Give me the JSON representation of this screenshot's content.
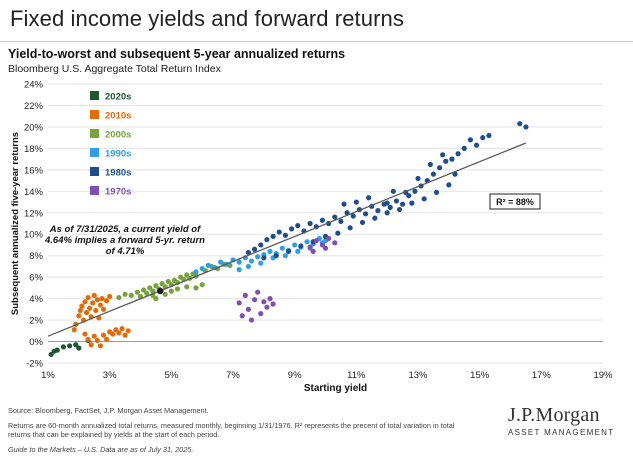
{
  "page": {
    "title": "Fixed income yields and forward returns",
    "chart_title": "Yield-to-worst and subsequent 5-year annualized returns",
    "chart_subtitle": "Bloomberg U.S. Aggregate Total Return Index"
  },
  "footer": {
    "source": "Source: Bloomberg, FactSet, J.P. Morgan Asset Management.",
    "notes": "Returns are 60-month annualized total returns, measured monthly, beginning 1/31/1976. R² represents the precent of total variation in total returns that can be explained by yields at the start of each period.",
    "guide": "Guide to the Markets – U.S. Data are as of July 31, 2025.",
    "logo_main": "J.P.Morgan",
    "logo_sub": "ASSET MANAGEMENT"
  },
  "chart_data": {
    "type": "scatter",
    "title": "Yield-to-worst and subsequent 5-year annualized returns",
    "subtitle": "Bloomberg U.S. Aggregate Total Return Index",
    "xlabel": "Starting yield",
    "ylabel": "Subsequent annualized five-year returns",
    "xlim": [
      1,
      19
    ],
    "ylim": [
      -2,
      24
    ],
    "x_ticks": [
      1,
      3,
      5,
      7,
      9,
      11,
      13,
      15,
      17,
      19
    ],
    "y_ticks": [
      -2,
      0,
      2,
      4,
      6,
      8,
      10,
      12,
      14,
      16,
      18,
      20,
      22,
      24
    ],
    "x_tick_format": "%",
    "y_tick_format": "%",
    "grid": "horizontal",
    "legend_position": "top-left",
    "r_squared_label": "R² = 88%",
    "annotation": {
      "lines": [
        "As of 7/31/2025, a current yield of",
        "4.64% implies a forward 5-yr. return",
        "of 4.71%"
      ],
      "x": 4.64,
      "y": 4.71
    },
    "trendline": {
      "x": [
        1,
        16.5
      ],
      "y": [
        0.5,
        18.5
      ]
    },
    "series": [
      {
        "name": "2020s",
        "color": "#1e5631",
        "points": [
          [
            1.1,
            -1.2
          ],
          [
            1.2,
            -0.9
          ],
          [
            1.3,
            -0.8
          ],
          [
            1.5,
            -0.5
          ],
          [
            1.7,
            -0.4
          ],
          [
            1.9,
            -0.3
          ],
          [
            2.0,
            -0.6
          ],
          [
            2.3,
            0.1
          ]
        ]
      },
      {
        "name": "2010s",
        "color": "#e36c0a",
        "points": [
          [
            1.85,
            1.1
          ],
          [
            1.9,
            1.6
          ],
          [
            2.0,
            2.4
          ],
          [
            2.05,
            2.9
          ],
          [
            2.1,
            3.3
          ],
          [
            2.15,
            2.0
          ],
          [
            2.2,
            3.7
          ],
          [
            2.25,
            2.7
          ],
          [
            2.3,
            4.1
          ],
          [
            2.35,
            3.1
          ],
          [
            2.4,
            2.3
          ],
          [
            2.45,
            3.6
          ],
          [
            2.5,
            4.3
          ],
          [
            2.55,
            2.9
          ],
          [
            2.6,
            3.9
          ],
          [
            2.65,
            2.2
          ],
          [
            2.7,
            3.4
          ],
          [
            2.75,
            4.0
          ],
          [
            2.8,
            3.0
          ],
          [
            2.9,
            3.8
          ],
          [
            3.0,
            4.2
          ],
          [
            2.2,
            0.7
          ],
          [
            2.3,
            0.2
          ],
          [
            2.4,
            -0.3
          ],
          [
            2.5,
            0.5
          ],
          [
            2.6,
            0.1
          ],
          [
            2.7,
            -0.4
          ],
          [
            2.8,
            0.6
          ],
          [
            2.9,
            0.2
          ],
          [
            3.0,
            0.9
          ],
          [
            3.1,
            0.7
          ],
          [
            3.2,
            1.1
          ],
          [
            3.3,
            0.8
          ],
          [
            3.4,
            1.2
          ],
          [
            3.5,
            0.6
          ],
          [
            3.6,
            1.0
          ]
        ]
      },
      {
        "name": "2000s",
        "color": "#77a33b",
        "points": [
          [
            3.3,
            4.1
          ],
          [
            3.5,
            4.4
          ],
          [
            3.7,
            4.3
          ],
          [
            3.9,
            4.6
          ],
          [
            4.0,
            4.2
          ],
          [
            4.1,
            4.8
          ],
          [
            4.2,
            4.5
          ],
          [
            4.3,
            5.0
          ],
          [
            4.4,
            4.7
          ],
          [
            4.5,
            5.2
          ],
          [
            4.6,
            4.9
          ],
          [
            4.7,
            5.4
          ],
          [
            4.8,
            5.1
          ],
          [
            4.9,
            5.6
          ],
          [
            5.0,
            5.3
          ],
          [
            5.1,
            5.7
          ],
          [
            5.2,
            5.5
          ],
          [
            5.3,
            6.0
          ],
          [
            5.4,
            5.8
          ],
          [
            5.5,
            6.2
          ],
          [
            5.6,
            5.9
          ],
          [
            5.7,
            6.3
          ],
          [
            5.8,
            6.1
          ],
          [
            4.4,
            4.3
          ],
          [
            4.5,
            4.0
          ],
          [
            4.8,
            4.4
          ],
          [
            5.0,
            4.7
          ],
          [
            5.2,
            4.9
          ],
          [
            5.5,
            5.1
          ],
          [
            5.8,
            5.0
          ],
          [
            6.0,
            5.3
          ],
          [
            6.1,
            6.6
          ],
          [
            6.3,
            7.0
          ],
          [
            6.5,
            6.8
          ],
          [
            6.7,
            7.2
          ],
          [
            6.9,
            7.1
          ]
        ]
      },
      {
        "name": "1990s",
        "color": "#2e9fe6",
        "points": [
          [
            5.8,
            6.5
          ],
          [
            6.0,
            6.8
          ],
          [
            6.2,
            7.1
          ],
          [
            6.4,
            6.9
          ],
          [
            6.6,
            7.4
          ],
          [
            6.8,
            7.2
          ],
          [
            7.0,
            7.6
          ],
          [
            7.2,
            7.4
          ],
          [
            7.4,
            7.8
          ],
          [
            7.6,
            7.5
          ],
          [
            7.8,
            7.9
          ],
          [
            8.0,
            8.1
          ],
          [
            8.2,
            8.4
          ],
          [
            8.4,
            8.2
          ],
          [
            8.6,
            8.7
          ],
          [
            8.8,
            8.5
          ],
          [
            9.0,
            9.0
          ],
          [
            9.2,
            8.8
          ],
          [
            9.4,
            9.3
          ],
          [
            9.6,
            9.1
          ],
          [
            9.8,
            9.6
          ],
          [
            10.0,
            9.4
          ],
          [
            7.2,
            6.7
          ],
          [
            7.5,
            7.0
          ],
          [
            7.9,
            7.3
          ],
          [
            8.3,
            7.8
          ],
          [
            8.7,
            8.0
          ],
          [
            9.1,
            8.4
          ],
          [
            9.5,
            8.7
          ],
          [
            9.9,
            9.2
          ]
        ]
      },
      {
        "name": "1980s",
        "color": "#1f4e8c",
        "points": [
          [
            7.5,
            8.3
          ],
          [
            7.7,
            8.6
          ],
          [
            7.9,
            9.0
          ],
          [
            8.1,
            9.5
          ],
          [
            8.3,
            9.8
          ],
          [
            8.5,
            10.2
          ],
          [
            8.7,
            9.9
          ],
          [
            8.9,
            10.5
          ],
          [
            9.1,
            10.8
          ],
          [
            9.3,
            10.3
          ],
          [
            9.5,
            11.0
          ],
          [
            9.7,
            10.7
          ],
          [
            9.9,
            11.3
          ],
          [
            10.1,
            11.0
          ],
          [
            10.3,
            11.6
          ],
          [
            10.5,
            11.2
          ],
          [
            10.7,
            12.0
          ],
          [
            10.9,
            11.7
          ],
          [
            11.1,
            12.3
          ],
          [
            11.3,
            11.9
          ],
          [
            11.5,
            12.6
          ],
          [
            11.7,
            12.2
          ],
          [
            11.9,
            12.8
          ],
          [
            12.1,
            12.5
          ],
          [
            12.3,
            13.1
          ],
          [
            12.5,
            12.8
          ],
          [
            12.7,
            13.6
          ],
          [
            12.9,
            14.0
          ],
          [
            13.1,
            14.5
          ],
          [
            13.3,
            15.0
          ],
          [
            13.5,
            15.6
          ],
          [
            13.7,
            16.2
          ],
          [
            13.9,
            16.8
          ],
          [
            14.1,
            17.0
          ],
          [
            14.3,
            17.5
          ],
          [
            14.5,
            18.0
          ],
          [
            14.7,
            18.8
          ],
          [
            14.9,
            18.3
          ],
          [
            15.1,
            19.0
          ],
          [
            15.3,
            19.2
          ],
          [
            16.3,
            20.3
          ],
          [
            16.5,
            20.0
          ],
          [
            8.0,
            7.8
          ],
          [
            8.4,
            8.0
          ],
          [
            8.8,
            8.4
          ],
          [
            9.2,
            8.9
          ],
          [
            9.6,
            9.3
          ],
          [
            10.0,
            9.8
          ],
          [
            10.4,
            10.1
          ],
          [
            10.8,
            10.6
          ],
          [
            11.2,
            11.1
          ],
          [
            11.6,
            11.5
          ],
          [
            12.0,
            12.0
          ],
          [
            12.4,
            12.3
          ],
          [
            12.8,
            12.9
          ],
          [
            13.2,
            13.3
          ],
          [
            13.6,
            13.9
          ],
          [
            14.0,
            14.6
          ],
          [
            12.2,
            14.0
          ],
          [
            12.6,
            13.9
          ],
          [
            13.0,
            15.2
          ],
          [
            13.4,
            16.5
          ],
          [
            13.8,
            17.4
          ],
          [
            14.2,
            15.6
          ],
          [
            11.0,
            13.0
          ],
          [
            10.6,
            12.8
          ],
          [
            11.4,
            13.4
          ],
          [
            12.0,
            12.9
          ]
        ]
      },
      {
        "name": "1970s",
        "color": "#7f4fb3",
        "points": [
          [
            7.2,
            3.6
          ],
          [
            7.3,
            2.4
          ],
          [
            7.4,
            4.3
          ],
          [
            7.5,
            3.0
          ],
          [
            7.6,
            2.0
          ],
          [
            7.7,
            3.9
          ],
          [
            7.8,
            4.6
          ],
          [
            7.9,
            2.6
          ],
          [
            8.0,
            3.7
          ],
          [
            8.1,
            3.2
          ],
          [
            8.2,
            4.0
          ],
          [
            8.3,
            3.5
          ],
          [
            9.5,
            8.8
          ],
          [
            9.7,
            9.4
          ],
          [
            9.9,
            9.0
          ],
          [
            10.1,
            9.6
          ],
          [
            10.3,
            9.2
          ],
          [
            9.6,
            8.4
          ],
          [
            10.0,
            8.7
          ]
        ]
      }
    ]
  }
}
